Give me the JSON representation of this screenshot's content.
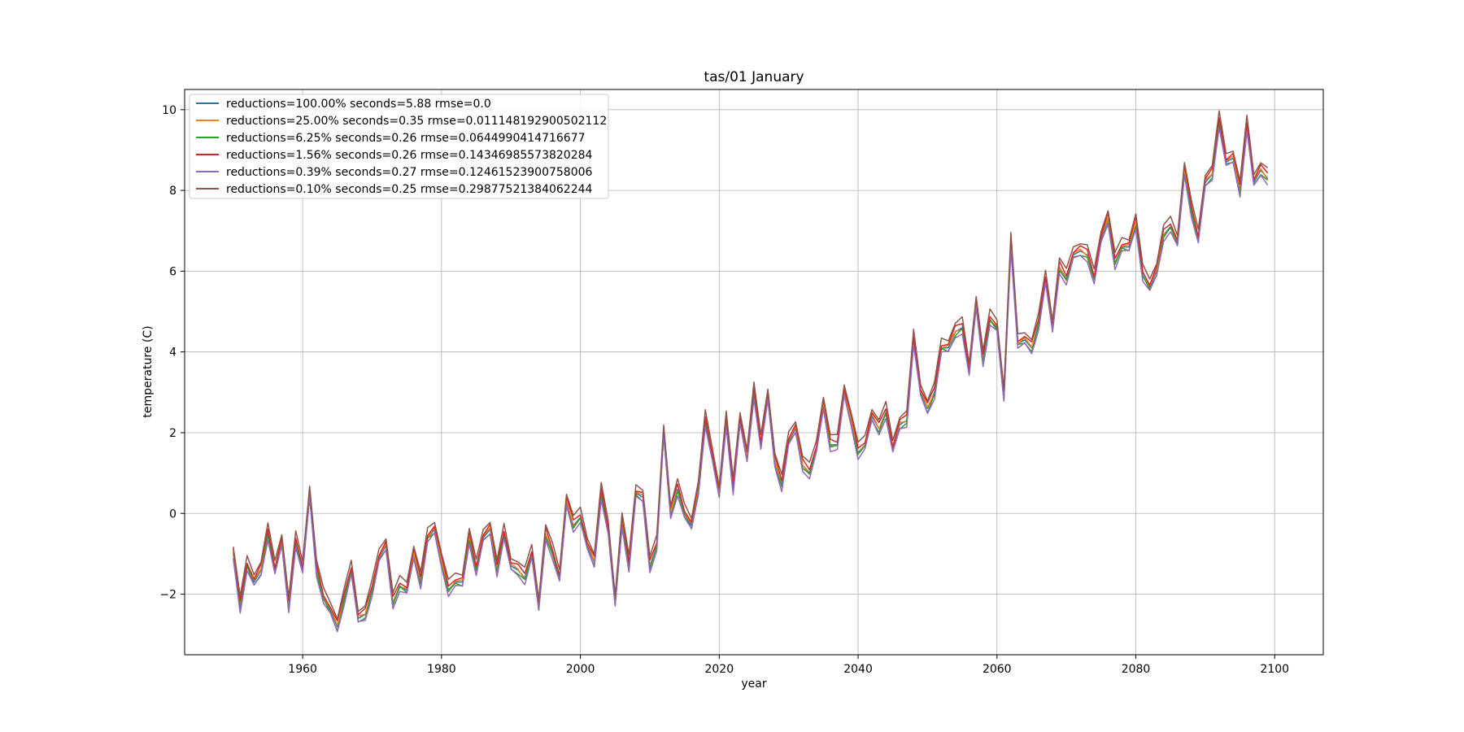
{
  "chart_data": {
    "type": "line",
    "title": "tas/01 January",
    "xlabel": "year",
    "ylabel": "temperature (C)",
    "xlim": [
      1943,
      2107
    ],
    "ylim": [
      -3.5,
      10.5
    ],
    "xticks": [
      1960,
      1980,
      2000,
      2020,
      2040,
      2060,
      2080,
      2100
    ],
    "yticks": [
      -2,
      0,
      2,
      4,
      6,
      8,
      10
    ],
    "grid": true,
    "legend_position": "upper-left",
    "x_start": 1950,
    "base": [
      -1.0,
      -2.3,
      -1.3,
      -1.7,
      -1.4,
      -0.5,
      -1.4,
      -0.7,
      -2.3,
      -0.7,
      -1.4,
      0.5,
      -1.4,
      -2.1,
      -2.4,
      -2.8,
      -2.1,
      -1.4,
      -2.6,
      -2.5,
      -1.9,
      -1.1,
      -0.8,
      -2.2,
      -1.8,
      -1.9,
      -1.0,
      -1.7,
      -0.6,
      -0.4,
      -1.2,
      -1.9,
      -1.7,
      -1.7,
      -0.6,
      -1.4,
      -0.6,
      -0.4,
      -1.4,
      -0.5,
      -1.3,
      -1.4,
      -1.6,
      -1.0,
      -2.3,
      -0.5,
      -1.0,
      -1.6,
      0.3,
      -0.3,
      -0.1,
      -0.8,
      -1.2,
      0.5,
      -0.4,
      -2.2,
      -0.2,
      -1.3,
      0.5,
      0.4,
      -1.3,
      -0.8,
      2.0,
      0.0,
      0.6,
      0.0,
      -0.3,
      0.6,
      2.3,
      1.4,
      0.5,
      2.3,
      0.6,
      2.3,
      1.4,
      3.0,
      1.7,
      2.9,
      1.3,
      0.7,
      1.8,
      2.1,
      1.2,
      1.0,
      1.6,
      2.7,
      1.7,
      1.7,
      3.0,
      2.3,
      1.5,
      1.7,
      2.4,
      2.1,
      2.5,
      1.6,
      2.2,
      2.3,
      4.3,
      3.0,
      2.6,
      3.0,
      4.1,
      4.1,
      4.5,
      4.6,
      3.5,
      5.2,
      3.8,
      4.8,
      4.6,
      2.9,
      6.7,
      4.2,
      4.3,
      4.1,
      4.7,
      5.8,
      4.6,
      6.1,
      5.8,
      6.4,
      6.5,
      6.4,
      5.8,
      6.8,
      7.3,
      6.2,
      6.6,
      6.6,
      7.2,
      5.9,
      5.6,
      6.0,
      6.9,
      7.1,
      6.7,
      8.5,
      7.5,
      6.8,
      8.2,
      8.4,
      9.7,
      8.7,
      8.8,
      8.0,
      9.6,
      8.2,
      8.5,
      8.3
    ],
    "series": [
      {
        "label": "reductions=100.00% seconds=5.88 rmse=0.0",
        "color": "#1f77b4",
        "offset": 0.0
      },
      {
        "label": "reductions=25.00% seconds=0.35 rmse=0.011148192900502112",
        "color": "#ff7f0e",
        "offset": 0.01
      },
      {
        "label": "reductions=6.25% seconds=0.26 rmse=0.0644990414716677",
        "color": "#2ca02c",
        "offset": -0.06
      },
      {
        "label": "reductions=1.56% seconds=0.26 rmse=0.14346985573820284",
        "color": "#d62728",
        "offset": 0.1
      },
      {
        "label": "reductions=0.39% seconds=0.27 rmse=0.12461523900758006",
        "color": "#9467bd",
        "offset": -0.12
      },
      {
        "label": "reductions=0.10% seconds=0.25 rmse=0.29877521384062244",
        "color": "#8c564b",
        "offset": 0.22
      }
    ]
  }
}
